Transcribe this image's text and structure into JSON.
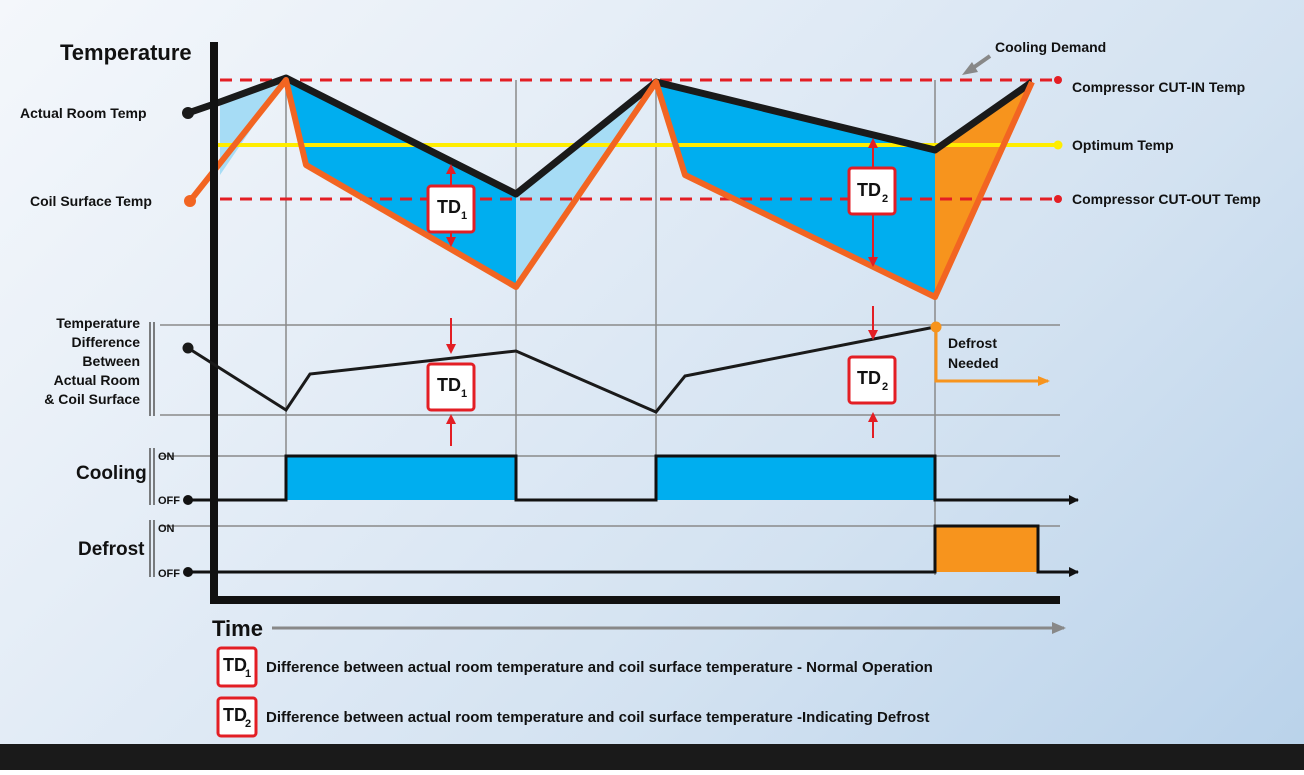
{
  "axes": {
    "y_title": "Temperature",
    "x_title": "Time"
  },
  "left_labels": {
    "actual_room_temp": "Actual Room Temp",
    "coil_surface_temp": "Coil Surface Temp",
    "temp_diff": [
      "Temperature",
      "Difference",
      "Between",
      "Actual Room",
      "& Coil Surface"
    ]
  },
  "right_labels": {
    "cooling_demand": "Cooling Demand",
    "cut_in": "Compressor CUT-IN Temp",
    "optimum": "Optimum Temp",
    "cut_out": "Compressor CUT-OUT Temp"
  },
  "rows": {
    "cooling": "Cooling",
    "defrost": "Defrost",
    "on": "ON",
    "off": "OFF"
  },
  "markers": {
    "td1_main": "TD",
    "td1_sub": "1",
    "td2_main": "TD",
    "td2_sub": "2"
  },
  "defrost_needed": [
    "Defrost",
    "Needed"
  ],
  "legend": [
    {
      "main": "TD",
      "sub": "1",
      "text": "Difference between actual room temperature and coil surface temperature - Normal Operation"
    },
    {
      "main": "TD",
      "sub": "2",
      "text": "Difference between actual room temperature and coil surface temperature  -Indicating Defrost"
    }
  ],
  "colors": {
    "cut_lines": "#e31e24",
    "optimum": "#ffed00",
    "actual_line": "#1a1a1a",
    "coil_line": "#f26522",
    "fill_blue": "#00aeef",
    "fill_light_blue": "#a6dcf5",
    "fill_orange": "#f7941d",
    "arrow_gray": "#888888"
  }
}
